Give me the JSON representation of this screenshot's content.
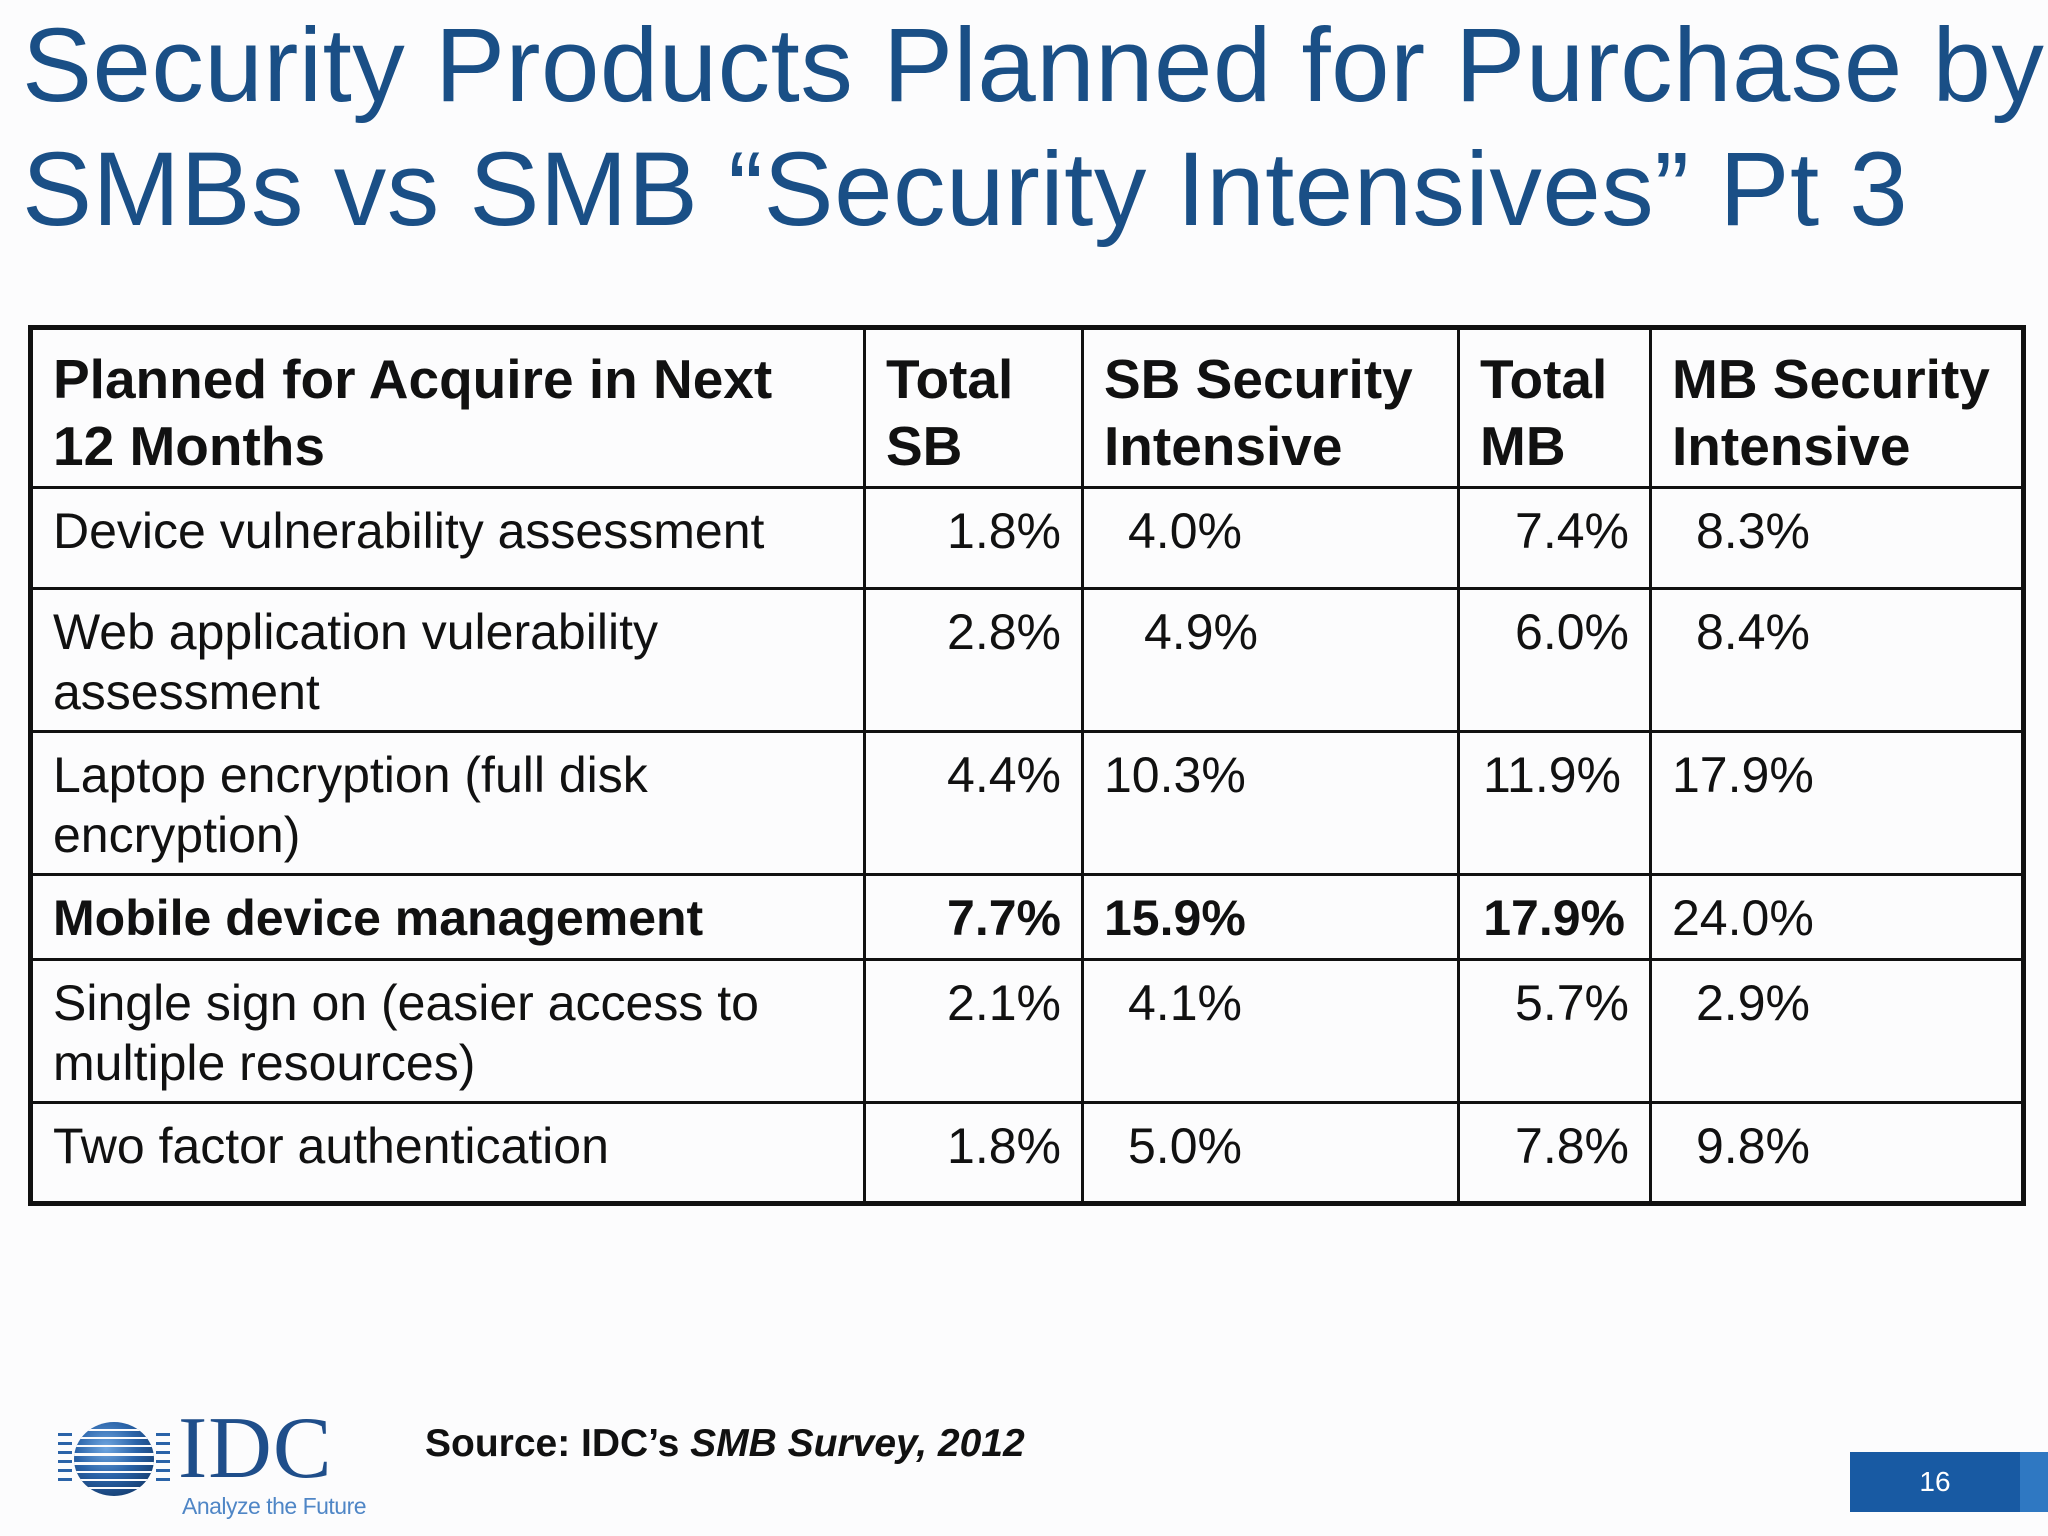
{
  "slide": {
    "title_lines": [
      "Security Products Planned for Purchase by",
      "SMBs vs SMB “Security Intensives” Pt 3"
    ],
    "page_number": "16"
  },
  "table": {
    "headers": [
      "Planned for Acquire in Next 12 Months",
      "Total SB",
      "SB Security Intensive",
      "Total MB",
      "MB Security Intensive"
    ],
    "rows": [
      {
        "label": "Device vulnerability assessment",
        "values": [
          "1.8%",
          "4.0%",
          "7.4%",
          "8.3%"
        ]
      },
      {
        "label": "Web application vulerability assessment",
        "values": [
          "2.8%",
          "4.9%",
          "6.0%",
          "8.4%"
        ]
      },
      {
        "label": "Laptop encryption (full disk encryption)",
        "values": [
          "4.4%",
          "10.3%",
          "11.9%",
          "17.9%"
        ]
      },
      {
        "label": "Mobile device management",
        "values": [
          "7.7%",
          "15.9%",
          "17.9%",
          "24.0%"
        ]
      },
      {
        "label": "Single sign on (easier access to multiple resources)",
        "values": [
          "2.1%",
          "4.1%",
          "5.7%",
          "2.9%"
        ]
      },
      {
        "label": "Two factor authentication",
        "values": [
          "1.8%",
          "5.0%",
          "7.8%",
          "9.8%"
        ]
      }
    ]
  },
  "source": {
    "prefix": "Source: IDC’s ",
    "italic": "SMB Survey, 2012"
  },
  "logo": {
    "name": "IDC",
    "tagline": "Analyze the Future"
  },
  "colors": {
    "title": "#1a4f86",
    "accent_blue": "#185aa3",
    "logo_blue": "#1f4e8a"
  }
}
